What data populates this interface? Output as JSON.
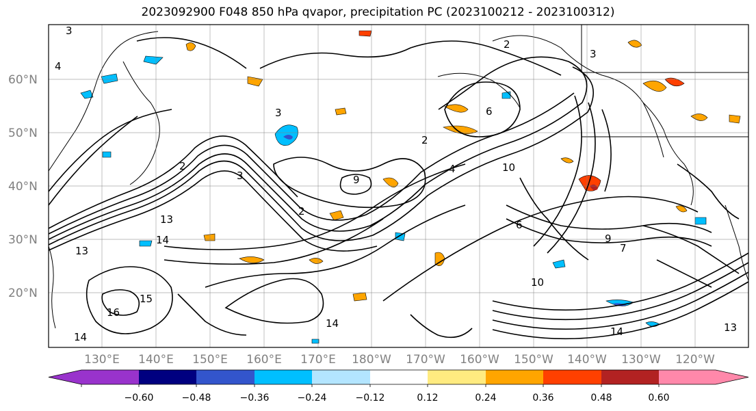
{
  "title": "2023092900 F048 850 hPa qvapor, precipitation PC (2023100212 - 2023100312)",
  "map": {
    "lat_labels": [
      "60°N",
      "50°N",
      "40°N",
      "30°N",
      "20°N"
    ],
    "lon_labels": [
      "130°E",
      "140°E",
      "150°E",
      "160°E",
      "170°E",
      "180°W",
      "170°W",
      "160°W",
      "150°W",
      "140°W",
      "130°W",
      "120°W"
    ],
    "contour_labels": [
      "3",
      "2",
      "4",
      "3",
      "6",
      "2",
      "3",
      "2",
      "4",
      "10",
      "2",
      "9",
      "13",
      "14",
      "15",
      "16",
      "14",
      "13",
      "14",
      "9",
      "7",
      "6",
      "10",
      "13",
      "14",
      "3"
    ]
  },
  "colorbar": {
    "colors": [
      "#9933cc",
      "#000080",
      "#3355cc",
      "#00bfff",
      "#b3e5ff",
      "#ffffff",
      "#ffeb80",
      "#ffa500",
      "#ff4000",
      "#b22222",
      "#ff88aa"
    ],
    "tick_labels": [
      "−0.60",
      "−0.48",
      "−0.36",
      "−0.24",
      "−0.12",
      "0.12",
      "0.24",
      "0.36",
      "0.48",
      "0.60"
    ]
  }
}
